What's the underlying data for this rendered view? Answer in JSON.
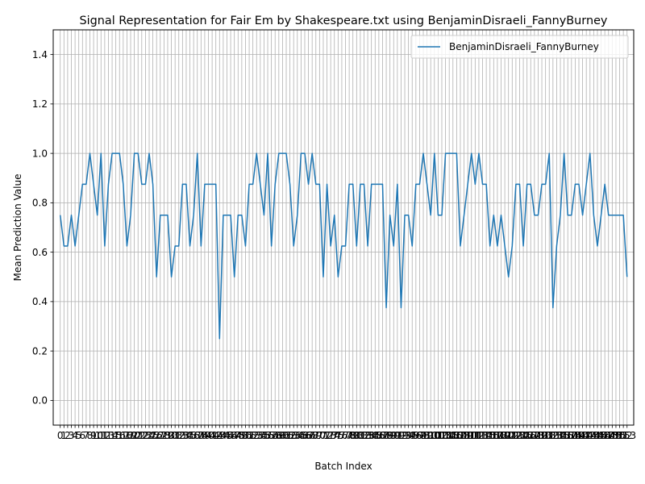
{
  "chart_data": {
    "type": "line",
    "title": "Signal Representation for Fair Em by Shakespeare.txt using BenjaminDisraeli_FannyBurney",
    "xlabel": "Batch Index",
    "ylabel": "Mean Prediction Value",
    "ylim": [
      -0.1,
      1.5
    ],
    "yticks": [
      0.0,
      0.2,
      0.4,
      0.6,
      0.8,
      1.0,
      1.2,
      1.4
    ],
    "xlim": [
      -1.9,
      154.8
    ],
    "grid": true,
    "legend_position": "top-right",
    "xticks": [
      0,
      1,
      2,
      3,
      4,
      5,
      6,
      7,
      8,
      9,
      10,
      11,
      12,
      13,
      14,
      15,
      16,
      17,
      18,
      19,
      20,
      21,
      22,
      23,
      24,
      25,
      26,
      27,
      28,
      29,
      30,
      31,
      32,
      33,
      34,
      35,
      36,
      37,
      38,
      39,
      40,
      41,
      42,
      43,
      44,
      45,
      46,
      47,
      48,
      49,
      50,
      51,
      52,
      53,
      54,
      55,
      56,
      57,
      58,
      59,
      60,
      61,
      62,
      63,
      64,
      65,
      66,
      67,
      68,
      69,
      70,
      71,
      72,
      73,
      74,
      75,
      76,
      77,
      78,
      79,
      80,
      81,
      82,
      83,
      84,
      85,
      86,
      87,
      88,
      89,
      90,
      91,
      92,
      93,
      94,
      95,
      96,
      97,
      98,
      99,
      100,
      101,
      102,
      103,
      104,
      105,
      106,
      107,
      108,
      109,
      110,
      111,
      112,
      113,
      114,
      115,
      116,
      117,
      118,
      119,
      120,
      121,
      122,
      123,
      124,
      125,
      126,
      127,
      128,
      129,
      130,
      131,
      132,
      133,
      134,
      135,
      136,
      137,
      138,
      139,
      140,
      141,
      142,
      143,
      144,
      145,
      146,
      147,
      148,
      149,
      150,
      151,
      152,
      153
    ],
    "x": [
      0,
      1,
      2,
      3,
      4,
      5,
      6,
      7,
      8,
      9,
      10,
      11,
      12,
      13,
      14,
      15,
      16,
      17,
      18,
      19,
      20,
      21,
      22,
      23,
      24,
      25,
      26,
      27,
      28,
      29,
      30,
      31,
      32,
      33,
      34,
      35,
      36,
      37,
      38,
      39,
      40,
      41,
      42,
      43,
      44,
      45,
      46,
      47,
      48,
      49,
      50,
      51,
      52,
      53,
      54,
      55,
      56,
      57,
      58,
      59,
      60,
      61,
      62,
      63,
      64,
      65,
      66,
      67,
      68,
      69,
      70,
      71,
      72,
      73,
      74,
      75,
      76,
      77,
      78,
      79,
      80,
      81,
      82,
      83,
      84,
      85,
      86,
      87,
      88,
      89,
      90,
      91,
      92,
      93,
      94,
      95,
      96,
      97,
      98,
      99,
      100,
      101,
      102,
      103,
      104,
      105,
      106,
      107,
      108,
      109,
      110,
      111,
      112,
      113,
      114,
      115,
      116,
      117,
      118,
      119,
      120,
      121,
      122,
      123,
      124,
      125,
      126,
      127,
      128,
      129,
      130,
      131,
      132,
      133,
      134,
      135,
      136,
      137,
      138,
      139,
      140,
      141,
      142,
      143,
      144,
      145,
      146,
      147,
      148,
      149,
      150,
      151,
      152,
      153
    ],
    "series": [
      {
        "name": "BenjaminDisraeli_FannyBurney",
        "color": "#1f77b4",
        "values": [
          0.75,
          0.625,
          0.625,
          0.75,
          0.625,
          0.75,
          0.875,
          0.875,
          1.0,
          0.875,
          0.75,
          1.0,
          0.625,
          0.875,
          1.0,
          1.0,
          1.0,
          0.875,
          0.625,
          0.75,
          1.0,
          1.0,
          0.875,
          0.875,
          1.0,
          0.875,
          0.5,
          0.75,
          0.75,
          0.75,
          0.5,
          0.625,
          0.625,
          0.875,
          0.875,
          0.625,
          0.75,
          1.0,
          0.625,
          0.875,
          0.875,
          0.875,
          0.875,
          0.25,
          0.75,
          0.75,
          0.75,
          0.5,
          0.75,
          0.75,
          0.625,
          0.875,
          0.875,
          1.0,
          0.875,
          0.75,
          1.0,
          0.625,
          0.875,
          1.0,
          1.0,
          1.0,
          0.875,
          0.625,
          0.75,
          1.0,
          1.0,
          0.875,
          1.0,
          0.875,
          0.875,
          0.5,
          0.875,
          0.625,
          0.75,
          0.5,
          0.625,
          0.625,
          0.875,
          0.875,
          0.625,
          0.875,
          0.875,
          0.625,
          0.875,
          0.875,
          0.875,
          0.875,
          0.375,
          0.75,
          0.625,
          0.875,
          0.375,
          0.75,
          0.75,
          0.625,
          0.875,
          0.875,
          1.0,
          0.875,
          0.75,
          1.0,
          0.75,
          0.75,
          1.0,
          1.0,
          1.0,
          1.0,
          0.625,
          0.75,
          0.875,
          1.0,
          0.875,
          1.0,
          0.875,
          0.875,
          0.625,
          0.75,
          0.625,
          0.75,
          0.625,
          0.5,
          0.625,
          0.875,
          0.875,
          0.625,
          0.875,
          0.875,
          0.75,
          0.75,
          0.875,
          0.875,
          1.0,
          0.375,
          0.625,
          0.75,
          1.0,
          0.75,
          0.75,
          0.875,
          0.875,
          0.75,
          0.875,
          1.0,
          0.75,
          0.625,
          0.75,
          0.875,
          0.75,
          0.75,
          0.75,
          0.75,
          0.75,
          0.5
        ]
      }
    ]
  }
}
